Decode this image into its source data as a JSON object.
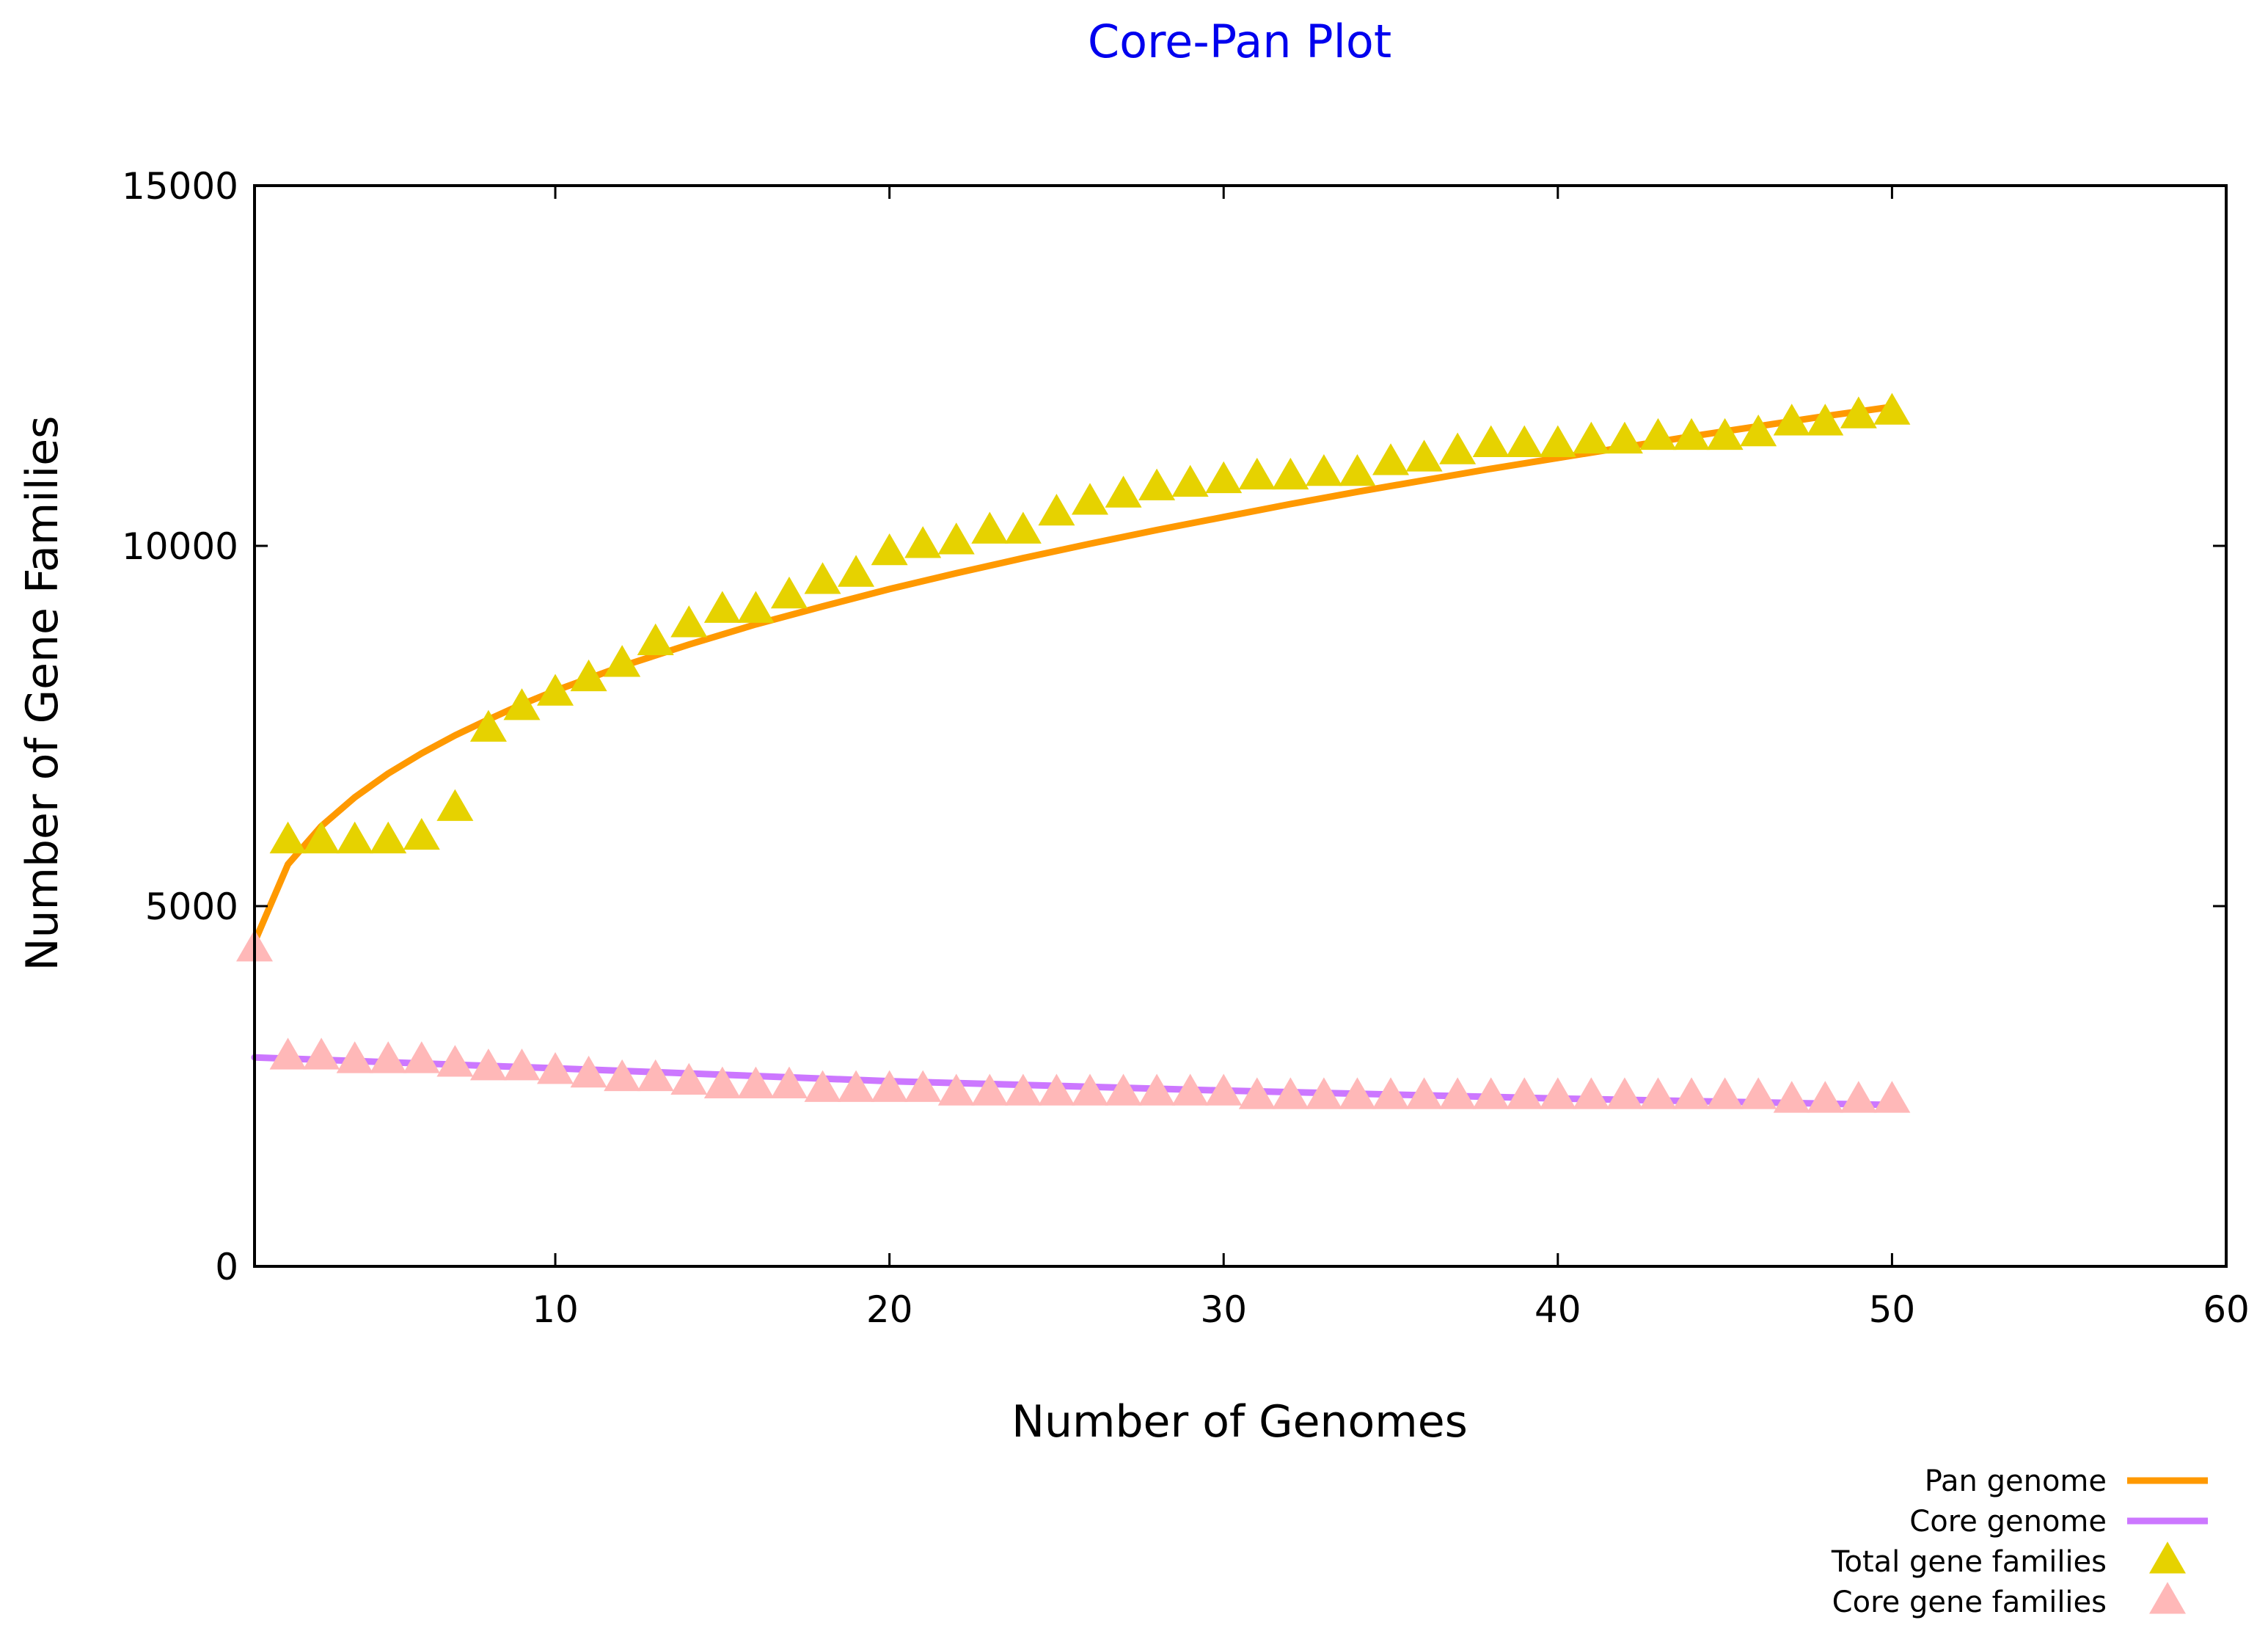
{
  "chart_data": {
    "type": "line",
    "title": "Core-Pan Plot",
    "xlabel": "Number of Genomes",
    "ylabel": "Number of Gene Families",
    "xlim": [
      1,
      60
    ],
    "ylim": [
      0,
      15000
    ],
    "x_ticks": [
      10,
      20,
      30,
      40,
      50,
      60
    ],
    "y_ticks": [
      0,
      5000,
      10000,
      15000
    ],
    "grid": false,
    "legend_position": "bottom-right",
    "colors": {
      "pan_genome": "#ff9900",
      "core_genome": "#cc77ff",
      "total_gene_families": "#e6d200",
      "core_gene_families": "#ffb8b8",
      "title": "#0000ee"
    },
    "series": [
      {
        "name": "Pan genome",
        "kind": "line",
        "x": [
          1,
          2,
          3,
          4,
          5,
          6,
          7,
          8,
          9,
          10,
          12,
          14,
          16,
          18,
          20,
          22,
          24,
          26,
          28,
          30,
          32,
          34,
          36,
          38,
          40,
          42,
          44,
          46,
          48,
          50
        ],
        "values": [
          4500,
          5580,
          6110,
          6510,
          6840,
          7120,
          7370,
          7590,
          7800,
          7990,
          8330,
          8630,
          8910,
          9160,
          9400,
          9620,
          9830,
          10030,
          10220,
          10400,
          10580,
          10750,
          10910,
          11070,
          11220,
          11370,
          11520,
          11660,
          11800,
          11930
        ]
      },
      {
        "name": "Core genome",
        "kind": "line",
        "x": [
          1,
          10,
          20,
          30,
          40,
          50
        ],
        "values": [
          2900,
          2750,
          2570,
          2440,
          2330,
          2240
        ]
      },
      {
        "name": "Total gene families",
        "kind": "markers",
        "x": [
          2,
          3,
          4,
          5,
          6,
          7,
          8,
          9,
          10,
          11,
          12,
          13,
          14,
          15,
          16,
          17,
          18,
          19,
          20,
          21,
          22,
          23,
          24,
          25,
          26,
          27,
          28,
          29,
          30,
          31,
          32,
          33,
          34,
          35,
          36,
          37,
          38,
          39,
          40,
          41,
          42,
          43,
          44,
          45,
          46,
          47,
          48,
          49,
          50
        ],
        "values": [
          5900,
          5900,
          5900,
          5900,
          5950,
          6350,
          7450,
          7750,
          7950,
          8150,
          8350,
          8650,
          8900,
          9100,
          9100,
          9300,
          9500,
          9600,
          9900,
          10000,
          10050,
          10200,
          10200,
          10450,
          10600,
          10700,
          10800,
          10850,
          10900,
          10950,
          10950,
          11000,
          11000,
          11150,
          11200,
          11300,
          11400,
          11400,
          11400,
          11450,
          11450,
          11500,
          11500,
          11500,
          11550,
          11700,
          11700,
          11800,
          11850
        ]
      },
      {
        "name": "Core gene families",
        "kind": "markers",
        "x": [
          1,
          2,
          3,
          4,
          5,
          6,
          7,
          8,
          9,
          10,
          11,
          12,
          13,
          14,
          15,
          16,
          17,
          18,
          19,
          20,
          21,
          22,
          23,
          24,
          25,
          26,
          27,
          28,
          29,
          30,
          31,
          32,
          33,
          34,
          35,
          36,
          37,
          38,
          39,
          40,
          41,
          42,
          43,
          44,
          45,
          46,
          47,
          48,
          49,
          50
        ],
        "values": [
          4400,
          2900,
          2900,
          2850,
          2850,
          2850,
          2800,
          2750,
          2750,
          2700,
          2650,
          2600,
          2600,
          2550,
          2500,
          2500,
          2500,
          2450,
          2450,
          2450,
          2450,
          2400,
          2400,
          2400,
          2400,
          2400,
          2400,
          2400,
          2400,
          2400,
          2350,
          2350,
          2350,
          2350,
          2350,
          2350,
          2350,
          2350,
          2350,
          2350,
          2350,
          2350,
          2350,
          2350,
          2350,
          2350,
          2300,
          2300,
          2300,
          2300
        ]
      }
    ]
  }
}
